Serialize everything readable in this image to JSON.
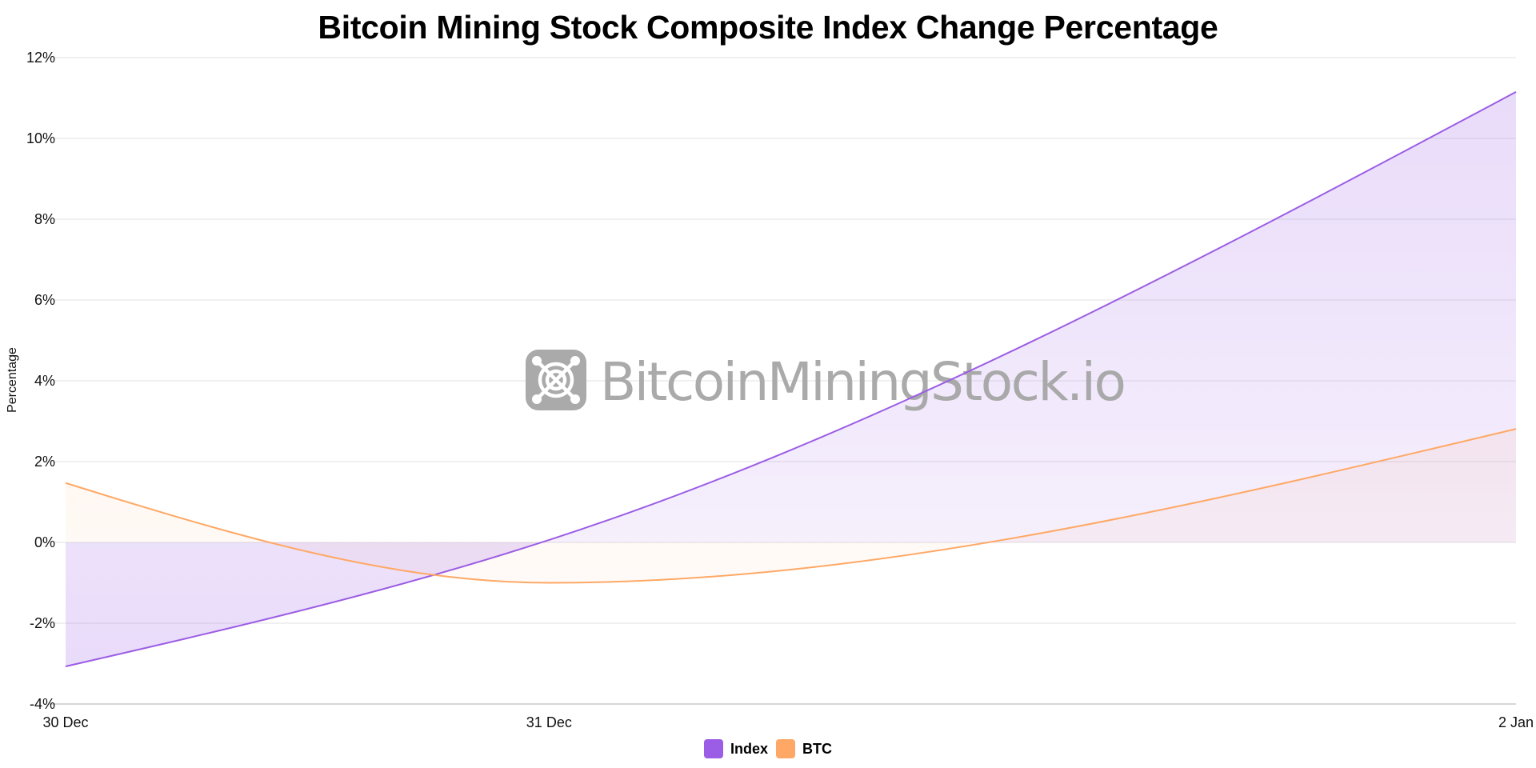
{
  "chart_data": {
    "type": "area",
    "title": "Bitcoin Mining Stock Composite Index Change Percentage",
    "xlabel": "",
    "ylabel": "Percentage",
    "x_type": "time",
    "x_ticks": [
      {
        "label": "30 Dec",
        "day": 0
      },
      {
        "label": "31 Dec",
        "day": 1
      },
      {
        "label": "2 Jan",
        "day": 3
      }
    ],
    "x_range_days": [
      0,
      3
    ],
    "ylim": [
      -4,
      12
    ],
    "y_ticks": [
      -4,
      -2,
      0,
      2,
      4,
      6,
      8,
      10,
      12
    ],
    "y_tick_suffix": "%",
    "grid": true,
    "interpolation": "smooth",
    "fill_to": 0,
    "legend_position": "bottom",
    "series": [
      {
        "name": "Index",
        "color": "#9b5de5",
        "points": [
          {
            "date": "30 Dec",
            "day": 0,
            "value": -3.07
          },
          {
            "date": "31 Dec",
            "day": 1,
            "value": 0.06
          },
          {
            "date": "2 Jan",
            "day": 3,
            "value": 11.15
          }
        ]
      },
      {
        "name": "BTC",
        "color": "#ffa865",
        "points": [
          {
            "date": "30 Dec",
            "day": 0,
            "value": 1.47
          },
          {
            "date": "31 Dec",
            "day": 1,
            "value": -1.0
          },
          {
            "date": "2 Jan",
            "day": 3,
            "value": 2.81
          }
        ]
      }
    ]
  },
  "watermark": {
    "text": "BitcoinMiningStock.io",
    "icon": "mining-fan-logo-icon",
    "color": "#a6a6a6"
  },
  "legend": {
    "items": [
      {
        "label": "Index",
        "color": "#9b5de5"
      },
      {
        "label": "BTC",
        "color": "#ffa865"
      }
    ]
  }
}
